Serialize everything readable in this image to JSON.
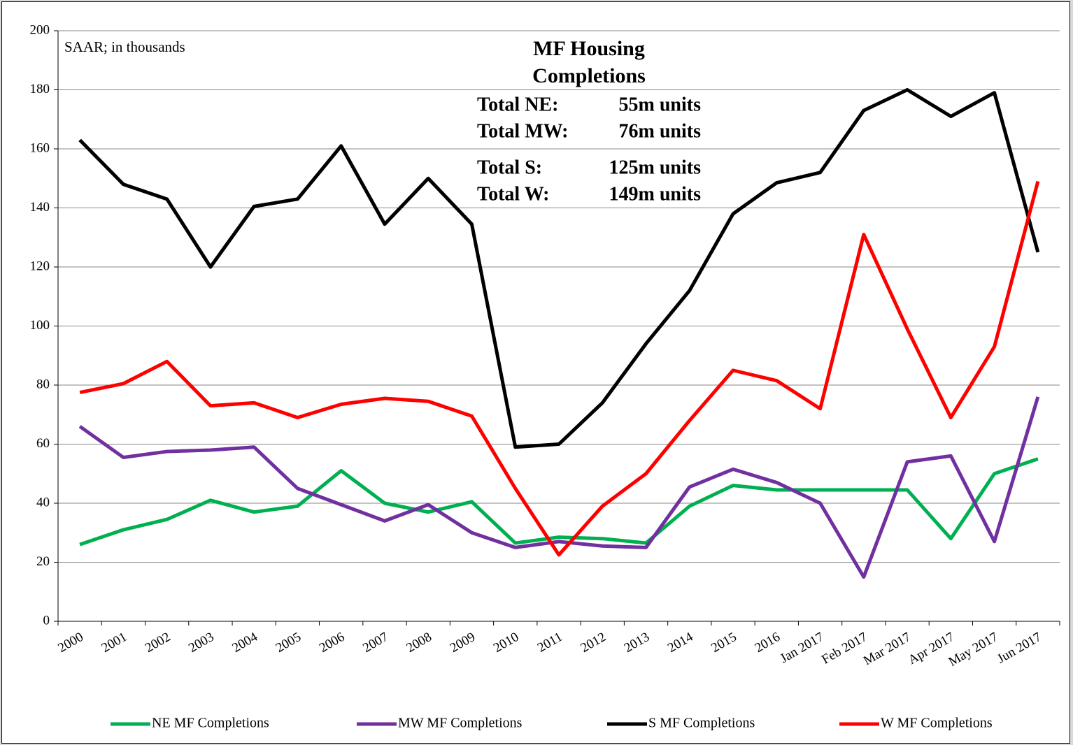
{
  "chart_data": {
    "type": "line",
    "title": "MF Housing Completions",
    "subtitle": "SAAR; in thousands",
    "totals": [
      {
        "label": "Total NE:",
        "value": "55m units"
      },
      {
        "label": "Total MW:",
        "value": "76m units"
      },
      {
        "label": "Total S:",
        "value": "125m units"
      },
      {
        "label": "Total W:",
        "value": "149m units"
      }
    ],
    "categories": [
      "2000",
      "2001",
      "2002",
      "2003",
      "2004",
      "2005",
      "2006",
      "2007",
      "2008",
      "2009",
      "2010",
      "2011",
      "2012",
      "2013",
      "2014",
      "2015",
      "2016",
      "Jan 2017",
      "Feb 2017",
      "Mar 2017",
      "Apr 2017",
      "May 2017",
      "Jun 2017"
    ],
    "series": [
      {
        "name": "NE MF Completions",
        "color": "#00b050",
        "values": [
          26,
          31,
          34.5,
          41,
          37,
          39,
          51,
          40,
          37,
          40.5,
          26.5,
          28.5,
          28,
          26.5,
          39,
          46,
          44.5,
          44.5,
          44.5,
          44.5,
          28,
          50,
          55
        ]
      },
      {
        "name": "MW MF Completions",
        "color": "#7030a0",
        "values": [
          66,
          55.5,
          57.5,
          58,
          59,
          45,
          39.5,
          34,
          39.5,
          30,
          25,
          27,
          25.5,
          25,
          45.5,
          51.5,
          47,
          40,
          15,
          54,
          56,
          27,
          76
        ]
      },
      {
        "name": "S MF Completions",
        "color": "#000000",
        "values": [
          163,
          148,
          143,
          120,
          140.5,
          143,
          161,
          134.5,
          150,
          134.5,
          59,
          60,
          74,
          94,
          112,
          138,
          148.5,
          152,
          173,
          180,
          171,
          179,
          125
        ]
      },
      {
        "name": "W MF Completions",
        "color": "#ff0000",
        "values": [
          77.5,
          80.5,
          88,
          73,
          74,
          69,
          73.5,
          75.5,
          74.5,
          69.5,
          45,
          22.5,
          39,
          50,
          68,
          85,
          81.5,
          72,
          131,
          99,
          69,
          93,
          149
        ]
      }
    ],
    "ylim": [
      0,
      200
    ],
    "yticks": [
      0,
      20,
      40,
      60,
      80,
      100,
      120,
      140,
      160,
      180,
      200
    ],
    "grid": true,
    "legend": "bottom"
  }
}
